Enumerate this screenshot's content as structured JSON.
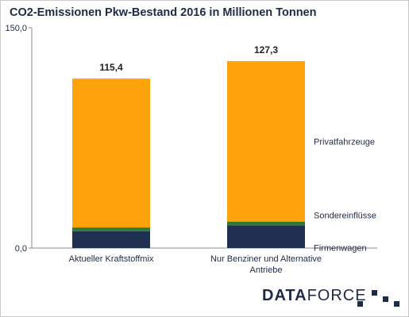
{
  "title": "CO2-Emissionen Pkw-Bestand 2016 in Millionen  Tonnen",
  "brand": {
    "part1": "DATA",
    "part2": "FORCE"
  },
  "colors": {
    "Privatfahrzeuge": "#ffa30d",
    "Sondereinflüsse": "#2e7d32",
    "Firmenwagen": "#1f3050",
    "axis": "#8c8c8c",
    "text": "#1f2a44"
  },
  "chart_data": {
    "type": "bar",
    "stacked": true,
    "title": "CO2-Emissionen Pkw-Bestand 2016 in Millionen  Tonnen",
    "categories": [
      "Aktueller Kraftstoffmix",
      "Nur Benziner und Alternative Antriebe"
    ],
    "category_lines": [
      [
        "Aktueller Kraftstoffmix"
      ],
      [
        "Nur Benziner und Alternative",
        "Antriebe"
      ]
    ],
    "series": [
      {
        "name": "Firmenwagen",
        "values": [
          11.5,
          15.5
        ]
      },
      {
        "name": "Sondereinflüsse",
        "values": [
          2.5,
          2.5
        ]
      },
      {
        "name": "Privatfahrzeuge",
        "values": [
          101.4,
          109.3
        ]
      }
    ],
    "totals": [
      115.4,
      127.3
    ],
    "total_labels": [
      "115,4",
      "127,3"
    ],
    "ylim": [
      0,
      150
    ],
    "ytick_labels": [
      "0,0",
      "150,0"
    ],
    "legend_position": "right, next to second bar",
    "grid": false
  }
}
